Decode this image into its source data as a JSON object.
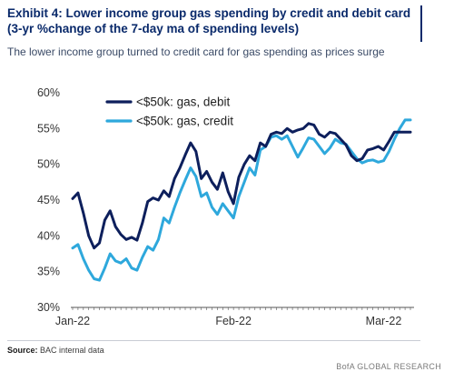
{
  "header": {
    "title_line1": "Exhibit 4: Lower income group gas spending by credit and debit card",
    "title_line2": "(3-yr %change of the 7-day ma of spending levels)",
    "subtitle": "The lower income group turned to credit card for gas spending as prices surge"
  },
  "footer": {
    "source_label": "Source:",
    "source_text": "BAC internal data",
    "brand": "BofA GLOBAL RESEARCH"
  },
  "colors": {
    "debit": "#0d1f5c",
    "credit": "#2ea8dc",
    "axis": "#555555"
  },
  "chart_data": {
    "type": "line",
    "title": "",
    "xlabel": "",
    "ylabel": "",
    "x_ticks": [
      "Jan-22",
      "Feb-22",
      "Mar-22"
    ],
    "x_tick_index": [
      0,
      30,
      58
    ],
    "y_ticks": [
      "30%",
      "35%",
      "40%",
      "45%",
      "50%",
      "55%",
      "60%"
    ],
    "ylim": [
      30,
      60
    ],
    "legend_position": "top-left",
    "x": [
      "2022-01-08",
      "2022-01-09",
      "2022-01-10",
      "2022-01-11",
      "2022-01-12",
      "2022-01-13",
      "2022-01-14",
      "2022-01-15",
      "2022-01-16",
      "2022-01-17",
      "2022-01-18",
      "2022-01-19",
      "2022-01-20",
      "2022-01-21",
      "2022-01-22",
      "2022-01-23",
      "2022-01-24",
      "2022-01-25",
      "2022-01-26",
      "2022-01-27",
      "2022-01-28",
      "2022-01-29",
      "2022-01-30",
      "2022-01-31",
      "2022-02-01",
      "2022-02-02",
      "2022-02-03",
      "2022-02-04",
      "2022-02-05",
      "2022-02-06",
      "2022-02-07",
      "2022-02-08",
      "2022-02-09",
      "2022-02-10",
      "2022-02-11",
      "2022-02-12",
      "2022-02-13",
      "2022-02-14",
      "2022-02-15",
      "2022-02-16",
      "2022-02-17",
      "2022-02-18",
      "2022-02-19",
      "2022-02-20",
      "2022-02-21",
      "2022-02-22",
      "2022-02-23",
      "2022-02-24",
      "2022-02-25",
      "2022-02-26",
      "2022-02-27",
      "2022-02-28",
      "2022-03-01",
      "2022-03-02",
      "2022-03-03",
      "2022-03-04",
      "2022-03-05",
      "2022-03-06",
      "2022-03-07",
      "2022-03-08",
      "2022-03-09",
      "2022-03-10",
      "2022-03-11",
      "2022-03-12"
    ],
    "series": [
      {
        "name": "<$50k: gas, debit",
        "values": [
          45.2,
          46.0,
          43.2,
          40.0,
          38.3,
          39.0,
          42.2,
          43.5,
          41.3,
          40.2,
          39.5,
          39.8,
          39.4,
          41.8,
          44.8,
          45.3,
          45.0,
          46.3,
          45.5,
          48.0,
          49.5,
          51.3,
          53.0,
          51.8,
          48.0,
          49.0,
          47.5,
          46.5,
          48.8,
          46.2,
          44.5,
          48.2,
          50.0,
          51.2,
          50.5,
          53.0,
          52.5,
          54.2,
          54.5,
          54.3,
          55.0,
          54.5,
          54.8,
          55.0,
          55.7,
          55.5,
          54.2,
          53.8,
          54.5,
          54.3,
          53.5,
          52.7,
          51.2,
          50.5,
          50.8,
          52.0,
          52.2,
          52.5,
          52.0,
          53.2,
          54.5,
          54.5,
          54.5,
          54.5
        ]
      },
      {
        "name": "<$50k: gas, credit",
        "values": [
          38.3,
          38.8,
          36.8,
          35.2,
          34.0,
          33.8,
          35.5,
          37.5,
          36.5,
          36.2,
          36.8,
          35.5,
          35.2,
          37.0,
          38.5,
          38.0,
          39.5,
          42.5,
          41.8,
          44.0,
          46.0,
          47.8,
          49.5,
          48.3,
          45.5,
          46.0,
          44.0,
          43.0,
          44.5,
          43.5,
          42.5,
          45.5,
          47.5,
          49.5,
          48.5,
          52.0,
          52.5,
          53.8,
          54.0,
          53.5,
          54.0,
          52.5,
          51.0,
          52.3,
          53.7,
          53.5,
          52.5,
          51.5,
          52.3,
          53.5,
          53.0,
          52.8,
          51.8,
          50.8,
          50.2,
          50.5,
          50.6,
          50.3,
          50.5,
          51.8,
          53.5,
          55.0,
          56.2,
          56.2
        ]
      }
    ]
  }
}
